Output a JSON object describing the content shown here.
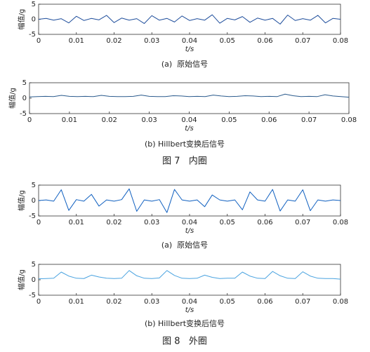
{
  "chart_data": [
    {
      "type": "line",
      "caption": "(a)  原始信号",
      "xlabel": "t/s",
      "ylabel": "幅值/g",
      "x": [
        0,
        0.002,
        0.004,
        0.006,
        0.008,
        0.01,
        0.012,
        0.014,
        0.016,
        0.018,
        0.02,
        0.022,
        0.024,
        0.026,
        0.028,
        0.03,
        0.032,
        0.034,
        0.036,
        0.038,
        0.04,
        0.042,
        0.044,
        0.046,
        0.048,
        0.05,
        0.052,
        0.054,
        0.056,
        0.058,
        0.06,
        0.062,
        0.064,
        0.066,
        0.068,
        0.07,
        0.072,
        0.074,
        0.076,
        0.078,
        0.08
      ],
      "series": [
        {
          "color": "#1f4e9c",
          "values": [
            0,
            0.3,
            -0.3,
            0.2,
            -1.2,
            1.0,
            -0.4,
            0.3,
            -0.2,
            1.3,
            -1.1,
            0.4,
            -0.3,
            0.2,
            -1.4,
            1.2,
            -0.3,
            0.3,
            -0.9,
            1.1,
            -0.4,
            0.2,
            -0.3,
            1.5,
            -1.3,
            0.3,
            -0.2,
            0.9,
            -1.0,
            0.4,
            -0.3,
            0.3,
            -1.6,
            1.4,
            -0.4,
            0.2,
            -0.3,
            1.3,
            -1.2,
            0.3,
            0
          ]
        }
      ],
      "xlim": [
        0,
        0.08
      ],
      "ylim": [
        -5,
        5
      ],
      "xticks": [
        0,
        0.01,
        0.02,
        0.03,
        0.04,
        0.05,
        0.06,
        0.07,
        0.08
      ],
      "yticks": [
        -5,
        0,
        5
      ]
    },
    {
      "type": "line",
      "caption": "(b) Hillbert变换后信号",
      "xlabel": "t/s",
      "ylabel": "幅值/g",
      "x": [
        0,
        0.002,
        0.004,
        0.006,
        0.008,
        0.01,
        0.012,
        0.014,
        0.016,
        0.018,
        0.02,
        0.022,
        0.024,
        0.026,
        0.028,
        0.03,
        0.032,
        0.034,
        0.036,
        0.038,
        0.04,
        0.042,
        0.044,
        0.046,
        0.048,
        0.05,
        0.052,
        0.054,
        0.056,
        0.058,
        0.06,
        0.062,
        0.064,
        0.066,
        0.068,
        0.07,
        0.072,
        0.074,
        0.076,
        0.078,
        0.08
      ],
      "series": [
        {
          "color": "#2a5a8c",
          "values": [
            0.4,
            0.5,
            0.6,
            0.5,
            0.9,
            0.6,
            0.5,
            0.6,
            0.5,
            0.9,
            0.6,
            0.5,
            0.5,
            0.6,
            1.0,
            0.6,
            0.5,
            0.5,
            0.8,
            0.7,
            0.5,
            0.6,
            0.5,
            1.0,
            0.7,
            0.5,
            0.6,
            0.8,
            0.7,
            0.5,
            0.6,
            0.5,
            1.3,
            0.8,
            0.5,
            0.6,
            0.5,
            1.1,
            0.7,
            0.5,
            0.3
          ]
        }
      ],
      "xlim": [
        0,
        0.08
      ],
      "ylim": [
        -5,
        5
      ],
      "xticks": [
        0,
        0.01,
        0.02,
        0.03,
        0.04,
        0.05,
        0.06,
        0.07,
        0.08
      ],
      "yticks": [
        -5,
        0,
        5
      ]
    },
    {
      "type": "line",
      "caption": "(a)  原始信号",
      "xlabel": "t/s",
      "ylabel": "幅值/g",
      "x": [
        0,
        0.002,
        0.004,
        0.006,
        0.008,
        0.01,
        0.012,
        0.014,
        0.016,
        0.018,
        0.02,
        0.022,
        0.024,
        0.026,
        0.028,
        0.03,
        0.032,
        0.034,
        0.036,
        0.038,
        0.04,
        0.042,
        0.044,
        0.046,
        0.048,
        0.05,
        0.052,
        0.054,
        0.056,
        0.058,
        0.06,
        0.062,
        0.064,
        0.066,
        0.068,
        0.07,
        0.072,
        0.074,
        0.076,
        0.078,
        0.08
      ],
      "series": [
        {
          "color": "#1060c0",
          "values": [
            0,
            0.2,
            -0.2,
            3.5,
            -3.2,
            0.3,
            -0.2,
            2.0,
            -1.8,
            0.2,
            -0.2,
            0.3,
            3.8,
            -3.5,
            0.2,
            -0.2,
            0.3,
            -3.9,
            3.6,
            0.2,
            -0.2,
            0.2,
            -2.0,
            1.8,
            0.2,
            -0.2,
            0.2,
            -3.0,
            2.8,
            0.2,
            -0.2,
            3.6,
            -3.4,
            0.2,
            -0.2,
            3.5,
            -3.3,
            0.2,
            -0.2,
            0.2,
            0
          ]
        }
      ],
      "xlim": [
        0,
        0.08
      ],
      "ylim": [
        -5,
        5
      ],
      "xticks": [
        0,
        0.01,
        0.02,
        0.03,
        0.04,
        0.05,
        0.06,
        0.07,
        0.08
      ],
      "yticks": [
        -5,
        0,
        5
      ]
    },
    {
      "type": "line",
      "caption": "(b) Hillbert变换后信号",
      "xlabel": "t/s",
      "ylabel": "幅值/g",
      "x": [
        0,
        0.002,
        0.004,
        0.006,
        0.008,
        0.01,
        0.012,
        0.014,
        0.016,
        0.018,
        0.02,
        0.022,
        0.024,
        0.026,
        0.028,
        0.03,
        0.032,
        0.034,
        0.036,
        0.038,
        0.04,
        0.042,
        0.044,
        0.046,
        0.048,
        0.05,
        0.052,
        0.054,
        0.056,
        0.058,
        0.06,
        0.062,
        0.064,
        0.066,
        0.068,
        0.07,
        0.072,
        0.074,
        0.076,
        0.078,
        0.08
      ],
      "series": [
        {
          "color": "#4aa3e0",
          "values": [
            0.3,
            0.4,
            0.5,
            2.5,
            1.2,
            0.5,
            0.4,
            1.5,
            0.9,
            0.5,
            0.4,
            0.5,
            3.0,
            1.3,
            0.5,
            0.4,
            0.6,
            3.0,
            1.4,
            0.5,
            0.4,
            0.5,
            1.5,
            0.8,
            0.4,
            0.5,
            0.5,
            2.5,
            1.2,
            0.5,
            0.4,
            2.7,
            1.3,
            0.5,
            0.4,
            2.6,
            1.2,
            0.5,
            0.4,
            0.4,
            0.2
          ]
        }
      ],
      "xlim": [
        0,
        0.08
      ],
      "ylim": [
        -5,
        5
      ],
      "xticks": [
        0,
        0.01,
        0.02,
        0.03,
        0.04,
        0.05,
        0.06,
        0.07,
        0.08
      ],
      "yticks": [
        -5,
        0,
        5
      ]
    }
  ],
  "figure_captions": [
    "图 7   内圈",
    "图 8   外圈"
  ]
}
